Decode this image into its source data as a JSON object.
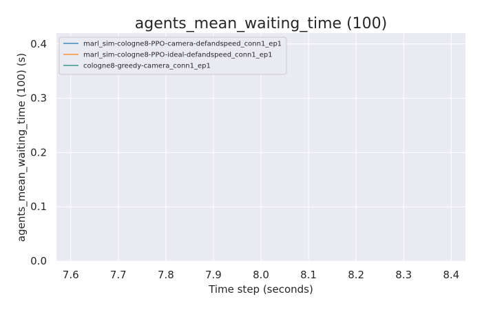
{
  "chart_data": {
    "type": "line",
    "title": "agents_mean_waiting_time (100)",
    "xlabel": "Time step (seconds)",
    "ylabel": "agents_mean_waiting_time (100) (s)",
    "xlim": [
      7.57,
      8.43
    ],
    "ylim": [
      0.0,
      0.42
    ],
    "x_ticks": [
      "7.6",
      "7.7",
      "7.8",
      "7.9",
      "8.0",
      "8.1",
      "8.2",
      "8.3",
      "8.4"
    ],
    "y_ticks": [
      "0.0",
      "0.1",
      "0.2",
      "0.3",
      "0.4"
    ],
    "grid": true,
    "legend_position": "top-left",
    "background": "#eaeaf2",
    "series": [
      {
        "name": "marl_sim-cologne8-PPO-camera-defandspeed_conn1_ep1",
        "color": "#1f77b4",
        "x": [],
        "y": []
      },
      {
        "name": "marl_sim-cologne8-PPO-ideal-defandspeed_conn1_ep1",
        "color": "#ff7f0e",
        "x": [],
        "y": []
      },
      {
        "name": "cologne8-greedy-camera_conn1_ep1",
        "color": "#17877a",
        "x": [],
        "y": []
      }
    ]
  }
}
